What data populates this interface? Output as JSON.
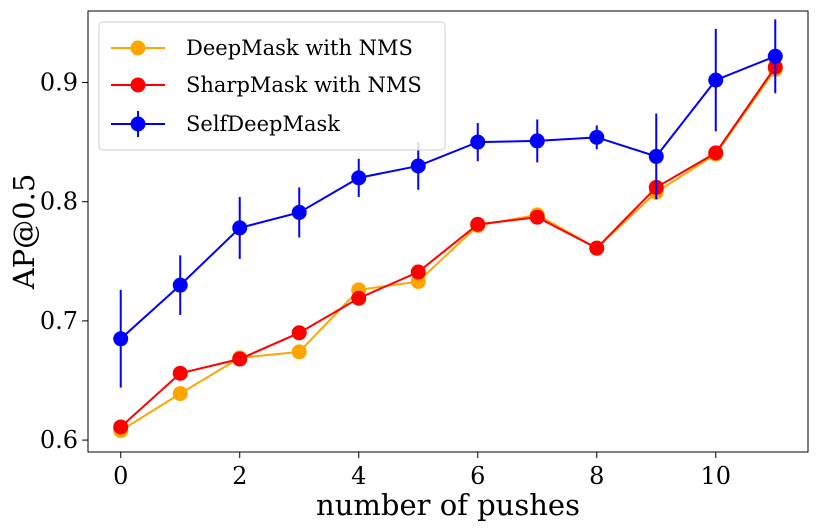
{
  "chart_data": {
    "type": "line",
    "title": "",
    "xlabel": "number of pushes",
    "ylabel": "AP@0.5",
    "xlim": [
      -0.55,
      11.55
    ],
    "ylim": [
      0.59,
      0.96
    ],
    "xticks": [
      0,
      2,
      4,
      6,
      8,
      10
    ],
    "yticks": [
      0.6,
      0.7,
      0.8,
      0.9
    ],
    "xtick_labels": [
      "0",
      "2",
      "4",
      "6",
      "8",
      "10"
    ],
    "ytick_labels": [
      "0.6",
      "0.7",
      "0.8",
      "0.9"
    ],
    "grid": false,
    "legend_position": "top-left",
    "x": [
      0,
      1,
      2,
      3,
      4,
      5,
      6,
      7,
      8,
      9,
      10,
      11
    ],
    "series": [
      {
        "name": "DeepMask with NMS",
        "color": "#ffa500",
        "values": [
          0.608,
          0.639,
          0.669,
          0.674,
          0.726,
          0.733,
          0.78,
          0.789,
          0.761,
          0.808,
          0.84,
          0.911
        ]
      },
      {
        "name": "SharpMask with NMS",
        "color": "#ff0000",
        "values": [
          0.611,
          0.656,
          0.668,
          0.69,
          0.719,
          0.741,
          0.781,
          0.787,
          0.761,
          0.812,
          0.841,
          0.913
        ]
      },
      {
        "name": "SelfDeepMask",
        "color": "#0000ff",
        "values": [
          0.685,
          0.73,
          0.778,
          0.791,
          0.82,
          0.83,
          0.85,
          0.851,
          0.854,
          0.838,
          0.902,
          0.922
        ],
        "error": [
          0.041,
          0.025,
          0.026,
          0.021,
          0.016,
          0.02,
          0.016,
          0.018,
          0.01,
          0.036,
          0.043,
          0.031
        ]
      }
    ]
  }
}
